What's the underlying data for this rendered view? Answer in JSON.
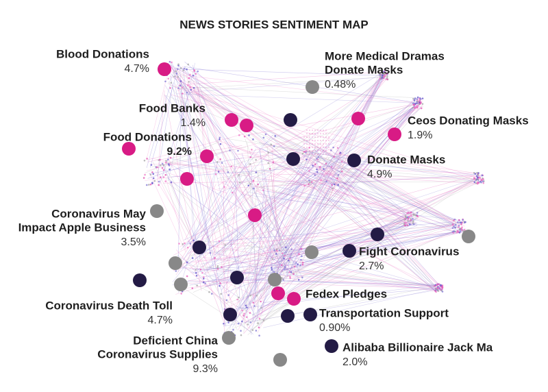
{
  "title": "NEWS STORIES SENTIMENT MAP",
  "stories": [
    {
      "name": [
        "Blood Donations"
      ],
      "share": "4.7%"
    },
    {
      "name": [
        "More Medical Dramas",
        "Donate Masks"
      ],
      "share": "0.48%"
    },
    {
      "name": [
        "Food Banks"
      ],
      "share": "1.4%"
    },
    {
      "name": [
        "Ceos Donating Masks"
      ],
      "share": "1.9%"
    },
    {
      "name": [
        "Food Donations"
      ],
      "share": "9.2%"
    },
    {
      "name": [
        "Donate Masks"
      ],
      "share": "4.9%"
    },
    {
      "name": [
        "Coronavirus May",
        "Impact Apple Business"
      ],
      "share": "3.5%"
    },
    {
      "name": [
        "Fight Coronavirus"
      ],
      "share": "2.7%"
    },
    {
      "name": [
        "Coronavirus Death Toll"
      ],
      "share": "4.7%"
    },
    {
      "name": [
        "Fedex Pledges"
      ]
    },
    {
      "name": [
        "Transportation Support"
      ],
      "share": "0.90%"
    },
    {
      "name": [
        "Deficient China",
        "Coronavirus Supplies"
      ],
      "share": "9.3%"
    },
    {
      "name": [
        "Alibaba Billionaire Jack Ma"
      ],
      "share": "2.0%"
    }
  ]
}
